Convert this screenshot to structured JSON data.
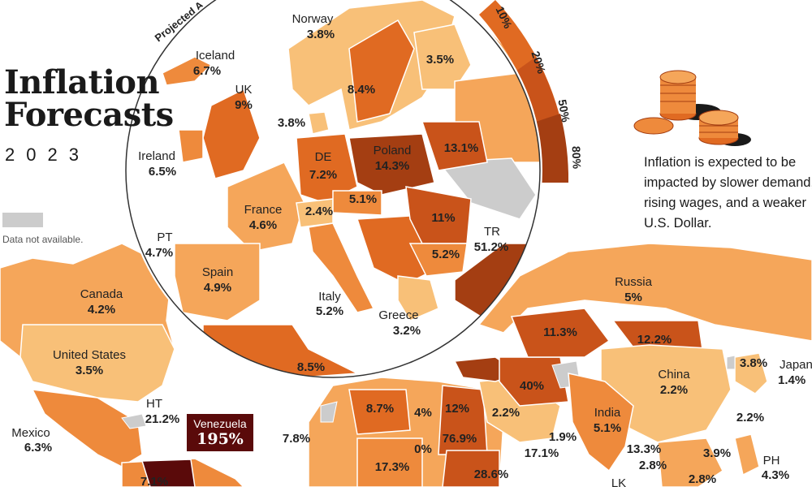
{
  "title_line1": "Inflation",
  "title_line2": "Forecasts",
  "year": "2023",
  "legend": {
    "arc_label": "Projected A",
    "ticks": [
      "10%",
      "20%",
      "50%",
      "80%"
    ],
    "not_available": "Data not available."
  },
  "note": "Inflation is expected to be impacted by slower demand, rising wages, and a weaker U.S. Dollar.",
  "colors": {
    "lightest": "#f8c078",
    "light": "#f5a65a",
    "mid": "#ee8a3c",
    "dark": "#e06a22",
    "darker": "#c9531a",
    "darkest": "#a43e12",
    "extreme": "#5a0a0a",
    "na": "#cccccc"
  },
  "europe": [
    {
      "name": "Norway",
      "value": "3.8%"
    },
    {
      "name": "Iceland",
      "value": "6.7%"
    },
    {
      "name": "UK",
      "value": "9%"
    },
    {
      "name": "Ireland",
      "value": "6.5%"
    },
    {
      "name": "DE",
      "value": "7.2%"
    },
    {
      "name": "Poland",
      "value": "14.3%"
    },
    {
      "name": "France",
      "value": "4.6%"
    },
    {
      "name": "PT",
      "value": "4.7%"
    },
    {
      "name": "Spain",
      "value": "4.9%"
    },
    {
      "name": "Italy",
      "value": "5.2%"
    },
    {
      "name": "Greece",
      "value": "3.2%"
    },
    {
      "name": "TR",
      "value": "51.2%"
    }
  ],
  "europe_values_only": [
    "8.4%",
    "3.5%",
    "3.8%",
    "13.1%",
    "5.1%",
    "2.4%",
    "11%",
    "5.2%",
    "8.5%"
  ],
  "world": [
    {
      "name": "Canada",
      "value": "4.2%"
    },
    {
      "name": "United States",
      "value": "3.5%"
    },
    {
      "name": "Mexico",
      "value": "6.3%"
    },
    {
      "name": "HT",
      "value": "21.2%"
    },
    {
      "name": "Venezuela",
      "value": "195%"
    },
    {
      "name": "Russia",
      "value": "5%"
    },
    {
      "name": "China",
      "value": "2.2%"
    },
    {
      "name": "India",
      "value": "5.1%"
    },
    {
      "name": "Japan",
      "value": "1.4%"
    },
    {
      "name": "PH",
      "value": "4.3%"
    },
    {
      "name": "LK",
      "value": ""
    }
  ],
  "world_values_only": [
    "7.8%",
    "7.1%",
    "8.7%",
    "4%",
    "12%",
    "76.9%",
    "0%",
    "17.3%",
    "28.6%",
    "2.2%",
    "1.9%",
    "17.1%",
    "40%",
    "11.3%",
    "12.2%",
    "3.8%",
    "2.2%",
    "13.3%",
    "2.8%",
    "3.9%",
    "2.8%"
  ]
}
